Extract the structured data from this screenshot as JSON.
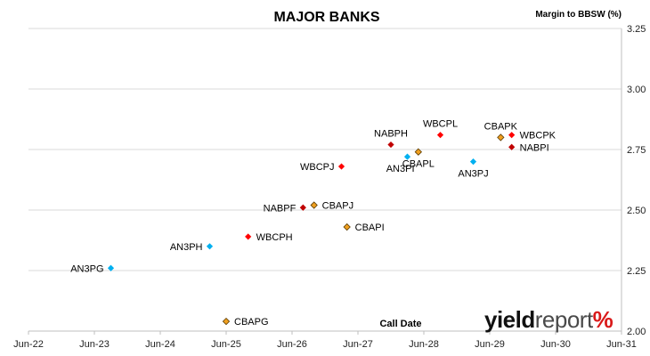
{
  "logo": {
    "part1": "yield",
    "part2": "report",
    "part3": "%"
  },
  "chart_data": {
    "type": "scatter",
    "title": "MAJOR BANKS",
    "xlabel": "Call Date",
    "ylabel": "Margin to BBSW (%)",
    "x_ticks": [
      "Jun-22",
      "Jun-23",
      "Jun-24",
      "Jun-25",
      "Jun-26",
      "Jun-27",
      "Jun-28",
      "Jun-29",
      "Jun-30",
      "Jun-31"
    ],
    "y_ticks": [
      "2.00",
      "2.25",
      "2.50",
      "2.75",
      "3.00",
      "3.25"
    ],
    "ylim": [
      2.0,
      3.25
    ],
    "xlim": [
      "Jun-22",
      "Jun-31"
    ],
    "colors": {
      "ANZ": "#00b0f0",
      "WBC": "#ff0000",
      "NAB": "#c00000",
      "CBA": "#f0a020"
    },
    "points": [
      {
        "label": "AN3PG",
        "x": "Sep-23",
        "y": 2.26,
        "bank": "ANZ",
        "label_side": "left"
      },
      {
        "label": "AN3PH",
        "x": "Mar-25",
        "y": 2.35,
        "bank": "ANZ",
        "label_side": "left"
      },
      {
        "label": "WBCPH",
        "x": "Oct-25",
        "y": 2.39,
        "bank": "WBC",
        "label_side": "right"
      },
      {
        "label": "NABPF",
        "x": "Aug-26",
        "y": 2.51,
        "bank": "NAB",
        "label_side": "left"
      },
      {
        "label": "CBAPJ",
        "x": "Oct-26",
        "y": 2.52,
        "bank": "CBA",
        "label_side": "right"
      },
      {
        "label": "CBAPI",
        "x": "Apr-27",
        "y": 2.43,
        "bank": "CBA",
        "label_side": "right"
      },
      {
        "label": "WBCPJ",
        "x": "Mar-27",
        "y": 2.68,
        "bank": "WBC",
        "label_side": "left"
      },
      {
        "label": "NABPH",
        "x": "Dec-27",
        "y": 2.77,
        "bank": "NAB",
        "label_side": "above"
      },
      {
        "label": "AN3PI",
        "x": "Mar-28",
        "y": 2.72,
        "bank": "ANZ",
        "label_side": "below-left"
      },
      {
        "label": "CBAPL",
        "x": "May-28",
        "y": 2.74,
        "bank": "CBA",
        "label_side": "below"
      },
      {
        "label": "WBCPL",
        "x": "Sep-28",
        "y": 2.81,
        "bank": "WBC",
        "label_side": "above"
      },
      {
        "label": "AN3PJ",
        "x": "Mar-29",
        "y": 2.7,
        "bank": "ANZ",
        "label_side": "below"
      },
      {
        "label": "CBAPK",
        "x": "Aug-29",
        "y": 2.8,
        "bank": "CBA",
        "label_side": "above"
      },
      {
        "label": "WBCPK",
        "x": "Oct-29",
        "y": 2.81,
        "bank": "WBC",
        "label_side": "right"
      },
      {
        "label": "NABPI",
        "x": "Oct-29",
        "y": 2.76,
        "bank": "NAB",
        "label_side": "right"
      },
      {
        "label": "CBAPG",
        "x": "Jun-25",
        "y": 2.04,
        "bank": "CBA",
        "label_side": "right"
      }
    ],
    "grid": true,
    "legend": "none"
  }
}
